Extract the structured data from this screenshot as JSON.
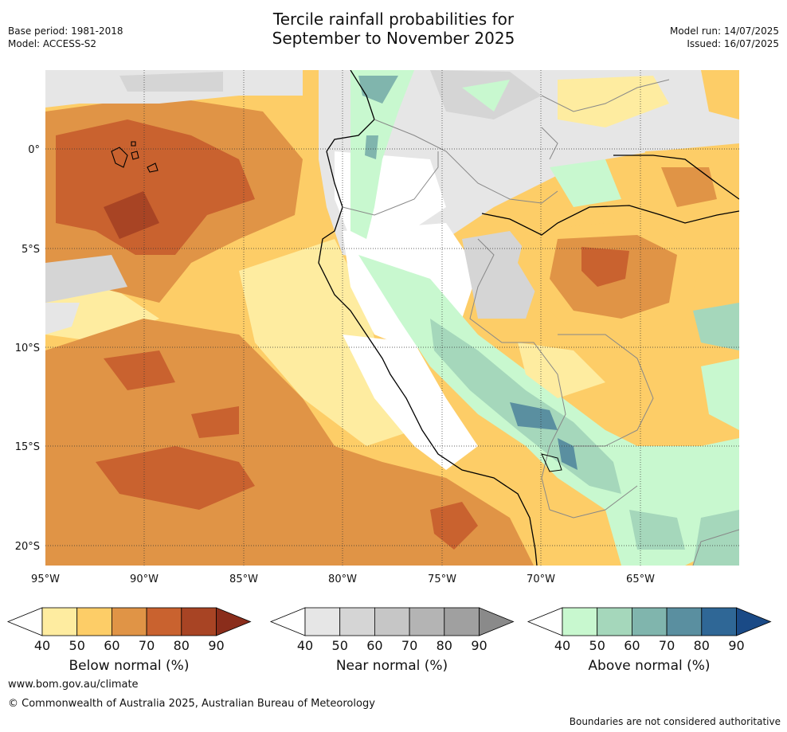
{
  "header": {
    "title_line1": "Tercile rainfall probabilities for",
    "title_line2": "September to November 2025",
    "base_period": "Base period: 1981-2018",
    "model": "Model: ACCESS-S2",
    "model_run": "Model run: 14/07/2025",
    "issued": "Issued: 16/07/2025"
  },
  "map": {
    "x_ticks": [
      "95°W",
      "90°W",
      "85°W",
      "80°W",
      "75°W",
      "70°W",
      "65°W"
    ],
    "y_ticks": [
      "0°",
      "5°S",
      "10°S",
      "15°S",
      "20°S"
    ]
  },
  "legends": [
    {
      "title": "Below normal (%)",
      "ticks": [
        "40",
        "50",
        "60",
        "70",
        "80",
        "90"
      ],
      "colors": [
        "#ffffff",
        "#feeca0",
        "#fdcd67",
        "#e09446",
        "#c9622f",
        "#a84424",
        "#8a2d1b"
      ]
    },
    {
      "title": "Near normal (%)",
      "ticks": [
        "40",
        "50",
        "60",
        "70",
        "80",
        "90"
      ],
      "colors": [
        "#ffffff",
        "#e6e6e6",
        "#d5d5d5",
        "#c6c6c6",
        "#b4b4b4",
        "#a0a0a0",
        "#8a8a8a"
      ]
    },
    {
      "title": "Above normal (%)",
      "ticks": [
        "40",
        "50",
        "60",
        "70",
        "80",
        "90"
      ],
      "colors": [
        "#ffffff",
        "#c8f8cf",
        "#a5d7bb",
        "#80b5ad",
        "#5a8fa0",
        "#2f6796",
        "#1a4a86"
      ]
    }
  ],
  "footer": {
    "website": "www.bom.gov.au/climate",
    "copyright": "© Commonwealth of Australia 2025, Australian Bureau of Meteorology",
    "disclaimer": "Boundaries are not considered authoritative"
  }
}
